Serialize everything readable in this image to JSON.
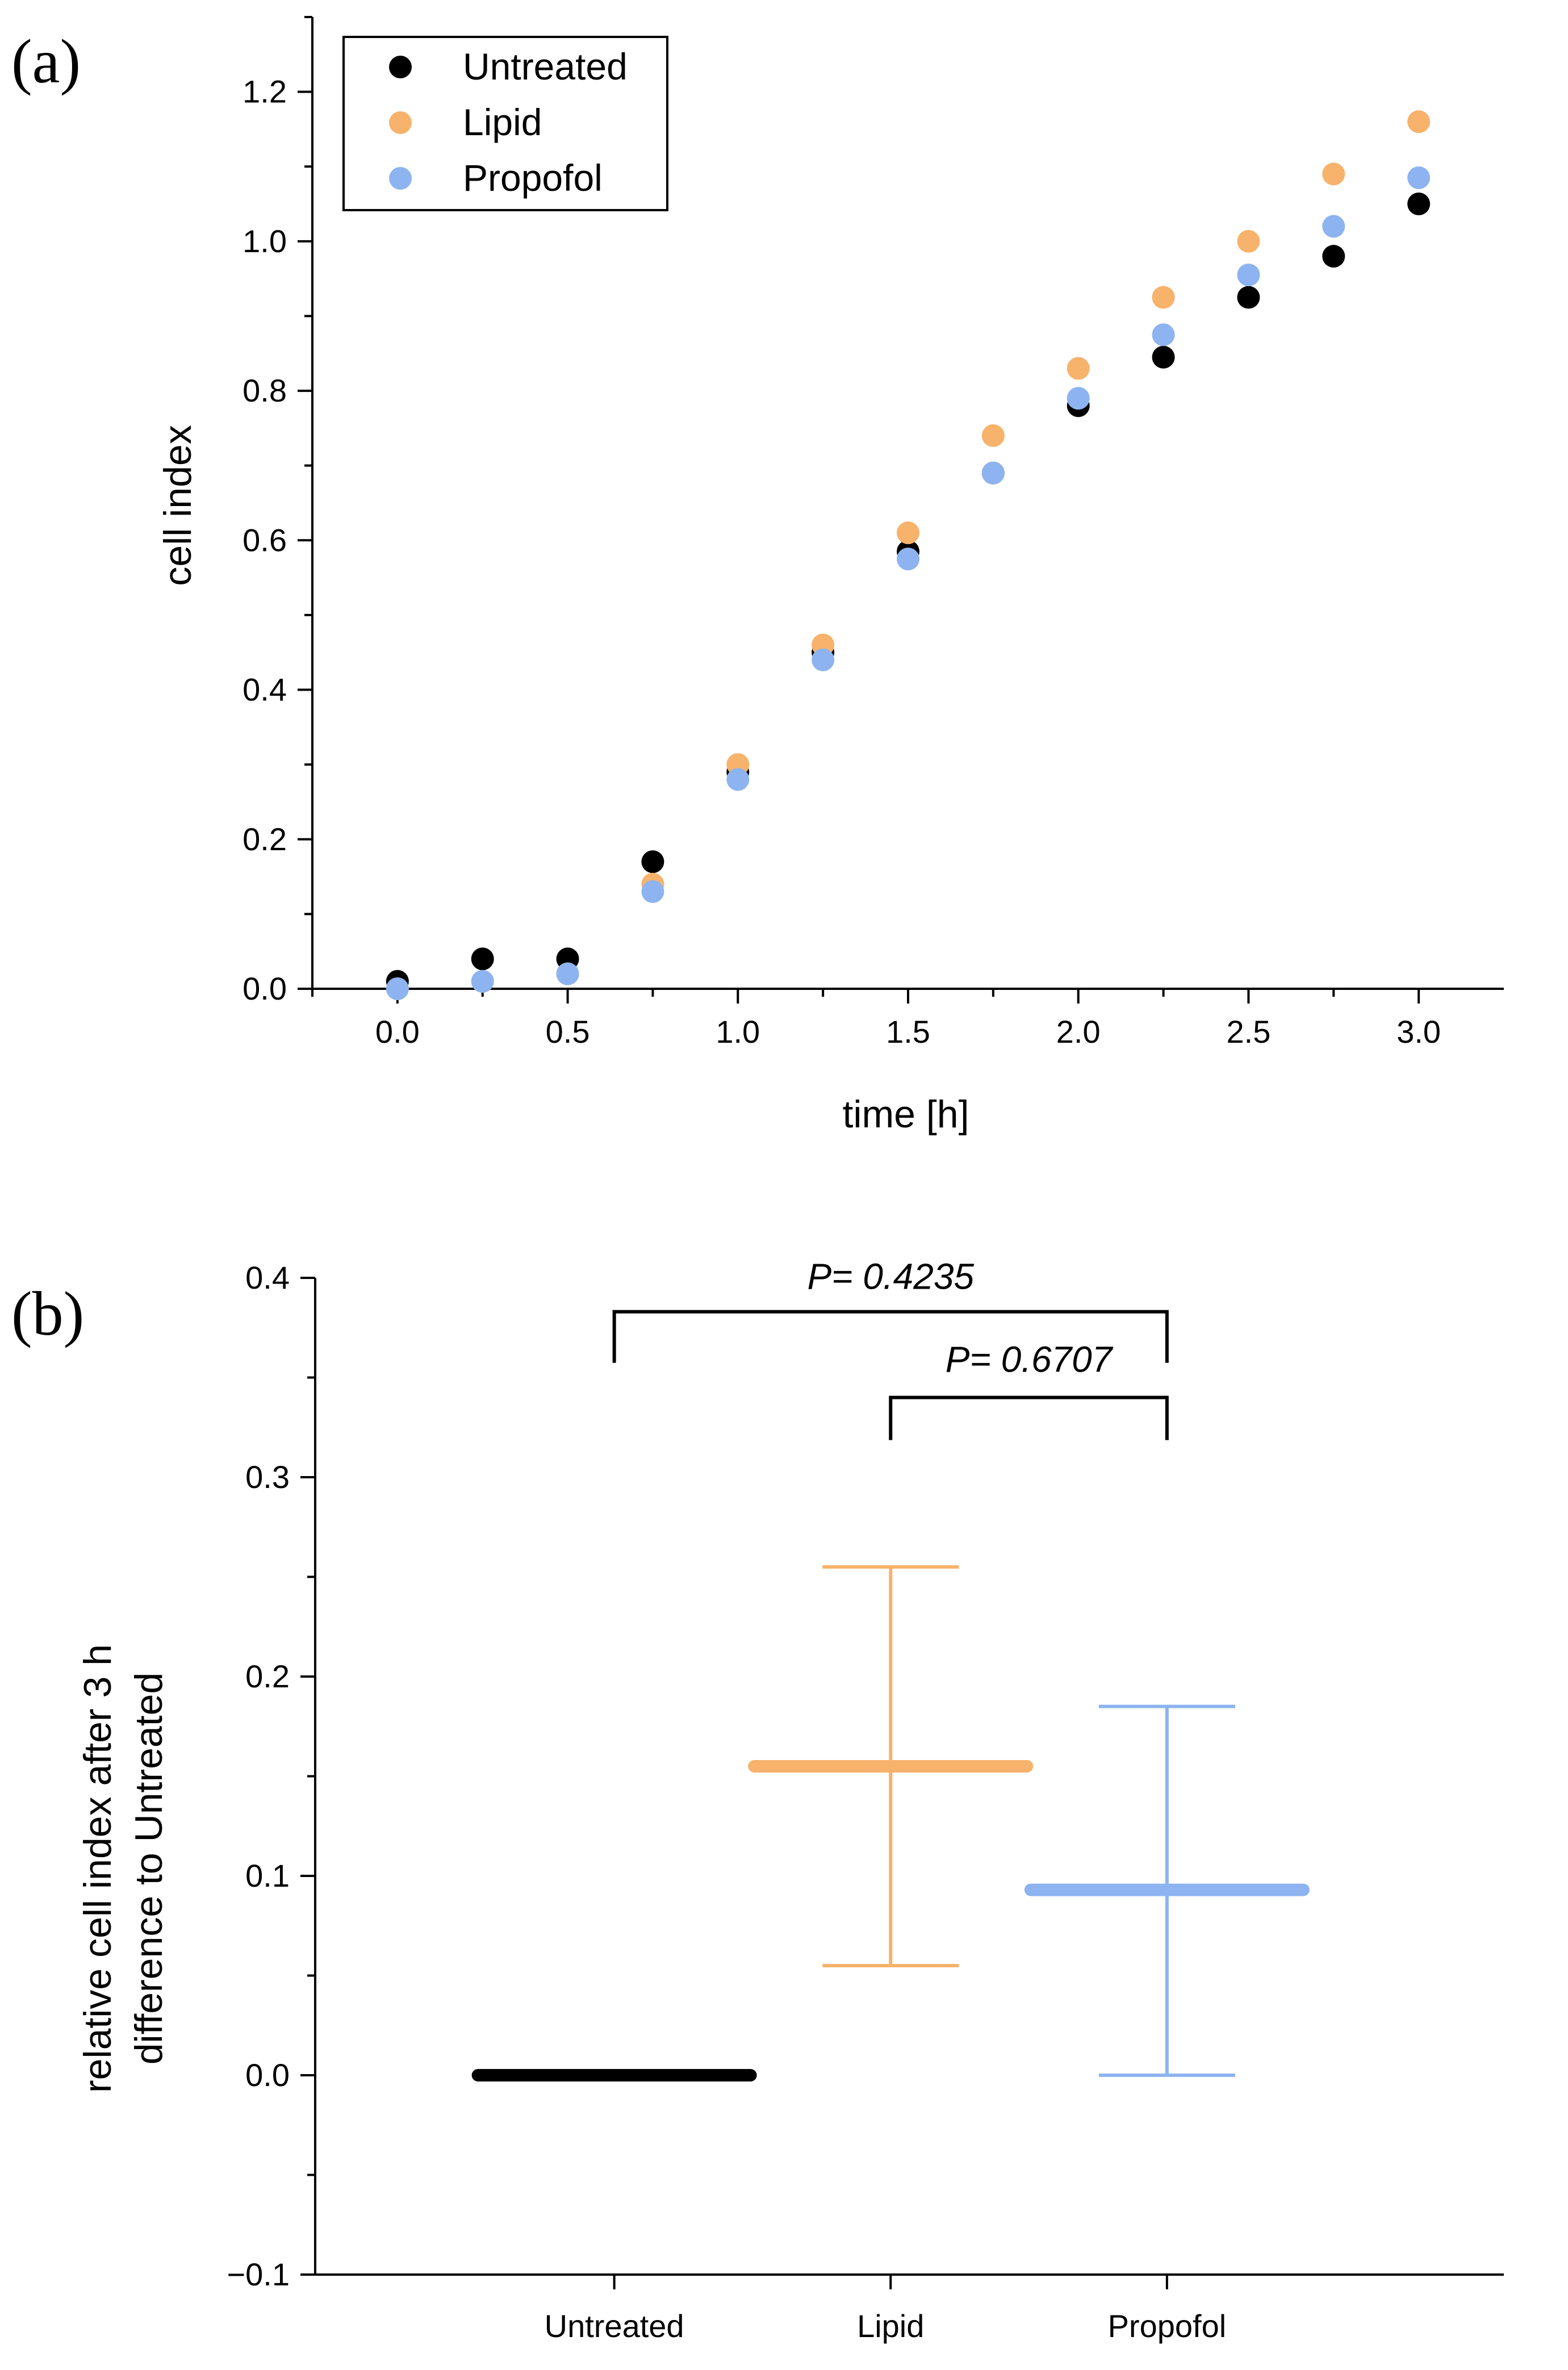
{
  "chart_data": [
    {
      "panel": "(a)",
      "type": "scatter",
      "xlabel": "time [h]",
      "ylabel": "cell index",
      "xlim": [
        -0.25,
        3.25
      ],
      "ylim": [
        0,
        1.3
      ],
      "x_ticks": [
        "0.0",
        "0.5",
        "1.0",
        "1.5",
        "2.0",
        "2.5",
        "3.0"
      ],
      "y_ticks": [
        "0.0",
        "0.2",
        "0.4",
        "0.6",
        "0.8",
        "1.0",
        "1.2"
      ],
      "legend_position": "top-left",
      "x": [
        0,
        0.25,
        0.5,
        0.75,
        1.0,
        1.25,
        1.5,
        1.75,
        2.0,
        2.25,
        2.5,
        2.75,
        3.0
      ],
      "series": [
        {
          "name": "Untreated",
          "color": "#000000",
          "values": [
            0.01,
            0.04,
            0.04,
            0.17,
            0.29,
            0.45,
            0.585,
            0.69,
            0.78,
            0.845,
            0.925,
            0.98,
            1.05
          ]
        },
        {
          "name": "Lipid",
          "color": "#F7B26B",
          "values": [
            0.0,
            0.01,
            0.02,
            0.14,
            0.3,
            0.46,
            0.61,
            0.74,
            0.83,
            0.925,
            1.0,
            1.09,
            1.16
          ]
        },
        {
          "name": "Propofol",
          "color": "#8DB4F0",
          "values": [
            0.0,
            0.01,
            0.02,
            0.13,
            0.28,
            0.44,
            0.575,
            0.69,
            0.79,
            0.875,
            0.955,
            1.02,
            1.085
          ]
        }
      ]
    },
    {
      "panel": "(b)",
      "type": "errorbar",
      "ylabel_line1": "relative cell index after 3 h",
      "ylabel_line2": "difference to Untreated",
      "ylim": [
        -0.1,
        0.4
      ],
      "y_ticks": [
        "−0.1",
        "0.0",
        "0.1",
        "0.2",
        "0.3",
        "0.4"
      ],
      "categories": [
        "Untreated",
        "Lipid",
        "Propofol"
      ],
      "series": [
        {
          "name": "Untreated",
          "color": "#000000",
          "mean": 0.0,
          "lower": 0.0,
          "upper": 0.0
        },
        {
          "name": "Lipid",
          "color": "#F7B26B",
          "mean": 0.155,
          "lower": 0.055,
          "upper": 0.255
        },
        {
          "name": "Propofol",
          "color": "#8DB4F0",
          "mean": 0.093,
          "lower": 0.0,
          "upper": 0.185
        }
      ],
      "comparisons": [
        {
          "from": "Untreated",
          "to": "Propofol",
          "label": "P= 0.4235"
        },
        {
          "from": "Lipid",
          "to": "Propofol",
          "label": "P= 0.6707"
        }
      ]
    }
  ]
}
